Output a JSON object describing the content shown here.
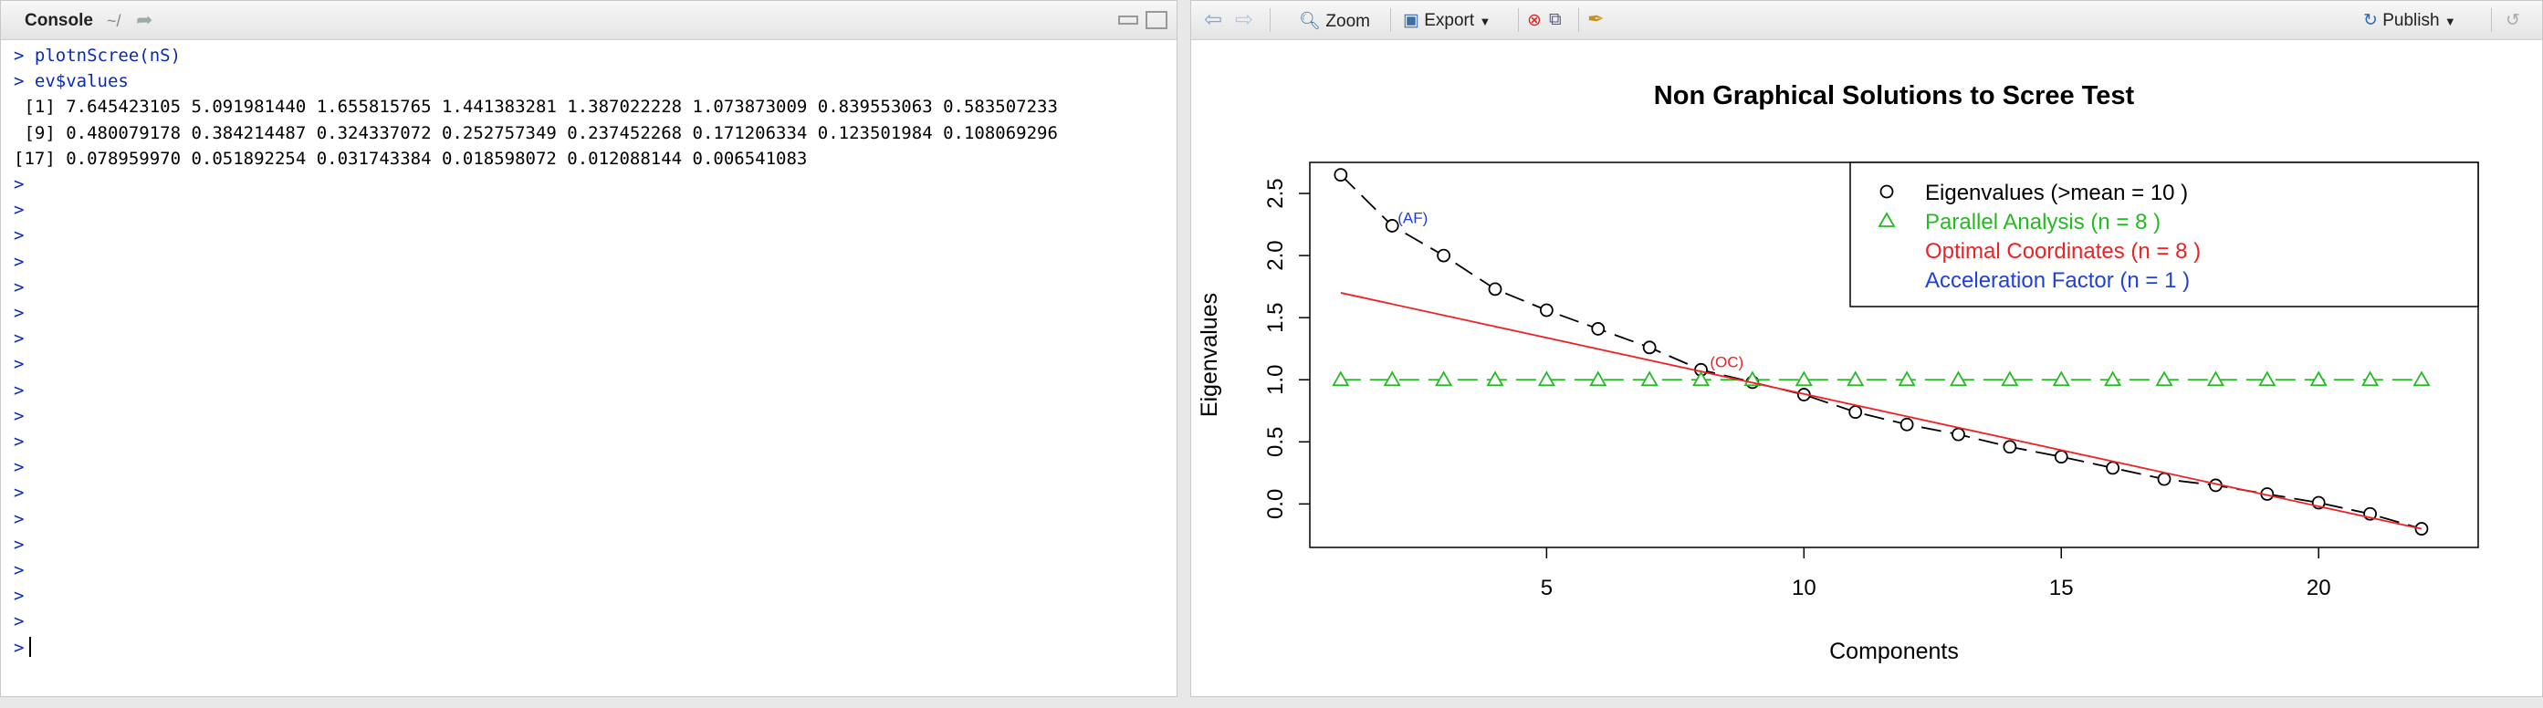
{
  "console": {
    "title": "Console",
    "path": "~/",
    "lines": [
      {
        "prompt": ">",
        "text": "plotnScree(nS)",
        "kind": "cmd"
      },
      {
        "prompt": ">",
        "text": "ev$values",
        "kind": "cmd"
      },
      {
        "prompt": "",
        "text": " [1] 7.645423105 5.091981440 1.655815765 1.441383281 1.387022228 1.073873009 0.839553063 0.583507233",
        "kind": "out"
      },
      {
        "prompt": "",
        "text": " [9] 0.480079178 0.384214487 0.324337072 0.252757349 0.237452268 0.171206334 0.123501984 0.108069296",
        "kind": "out"
      },
      {
        "prompt": "",
        "text": "[17] 0.078959970 0.051892254 0.031743384 0.018598072 0.012088144 0.006541083",
        "kind": "out"
      }
    ],
    "empty_prompts": 19,
    "prompt_symbol": ">"
  },
  "plots_toolbar": {
    "zoom_label": "Zoom",
    "export_label": "Export",
    "publish_label": "Publish"
  },
  "chart_data": {
    "type": "scatter",
    "title": "Non Graphical Solutions to Scree Test",
    "xlabel": "Components",
    "ylabel": "Eigenvalues",
    "xlim": [
      0.4,
      23.1
    ],
    "ylim": [
      -0.35,
      2.75
    ],
    "xticks": [
      5,
      10,
      15,
      20
    ],
    "yticks": [
      0.0,
      0.5,
      1.0,
      1.5,
      2.0,
      2.5
    ],
    "grid": false,
    "legend_position": "top-right",
    "series": [
      {
        "name": "Eigenvalues (>mean  =  10 )",
        "color": "#000000",
        "marker": "circle",
        "line": "dashed",
        "x": [
          1,
          2,
          3,
          4,
          5,
          6,
          7,
          8,
          9,
          10,
          11,
          12,
          13,
          14,
          15,
          16,
          17,
          18,
          19,
          20,
          21,
          22
        ],
        "y": [
          2.65,
          2.24,
          2.0,
          1.73,
          1.56,
          1.41,
          1.26,
          1.08,
          0.98,
          0.88,
          0.74,
          0.64,
          0.56,
          0.46,
          0.38,
          0.29,
          0.2,
          0.15,
          0.08,
          0.01,
          -0.08,
          -0.2
        ]
      },
      {
        "name": "Parallel Analysis (n =  8 )",
        "color": "#22bb22",
        "marker": "triangle",
        "line": "dashed",
        "x": [
          1,
          2,
          3,
          4,
          5,
          6,
          7,
          8,
          9,
          10,
          11,
          12,
          13,
          14,
          15,
          16,
          17,
          18,
          19,
          20,
          21,
          22
        ],
        "y": [
          1,
          1,
          1,
          1,
          1,
          1,
          1,
          1,
          1,
          1,
          1,
          1,
          1,
          1,
          1,
          1,
          1,
          1,
          1,
          1,
          1,
          1
        ]
      },
      {
        "name": "Optimal Coordinates (n =  8 )",
        "color": "#ee2222",
        "marker": "none",
        "line": "solid",
        "x": [
          1,
          22
        ],
        "y": [
          1.7,
          -0.2
        ]
      },
      {
        "name": "Acceleration Factor (n =  1 )",
        "color": "#1f3fe0",
        "marker": "none",
        "line": "none",
        "x": [],
        "y": []
      }
    ],
    "annotations": [
      {
        "text": "(AF)",
        "x": 2.4,
        "y": 2.26,
        "color": "#1f3fe0"
      },
      {
        "text": "(OC)",
        "x": 8.5,
        "y": 1.1,
        "color": "#ee2222"
      }
    ]
  }
}
